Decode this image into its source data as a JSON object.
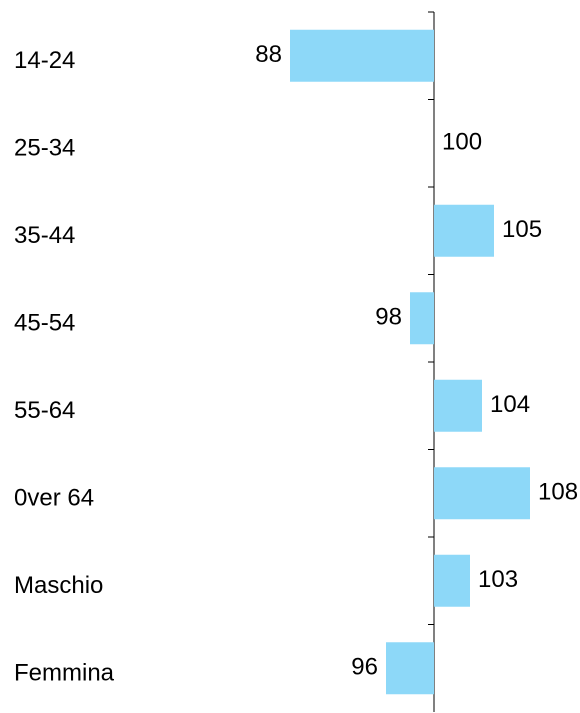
{
  "chart_data": {
    "type": "hbar",
    "categories": [
      "14-24",
      "25-34",
      "35-44",
      "45-54",
      "55-64",
      "0ver 64",
      "Maschio",
      "Femmina"
    ],
    "values": [
      88,
      100,
      105,
      98,
      104,
      108,
      103,
      96
    ],
    "color": "#8dd8f8",
    "base": 100,
    "xlim": [
      80,
      112
    ]
  }
}
